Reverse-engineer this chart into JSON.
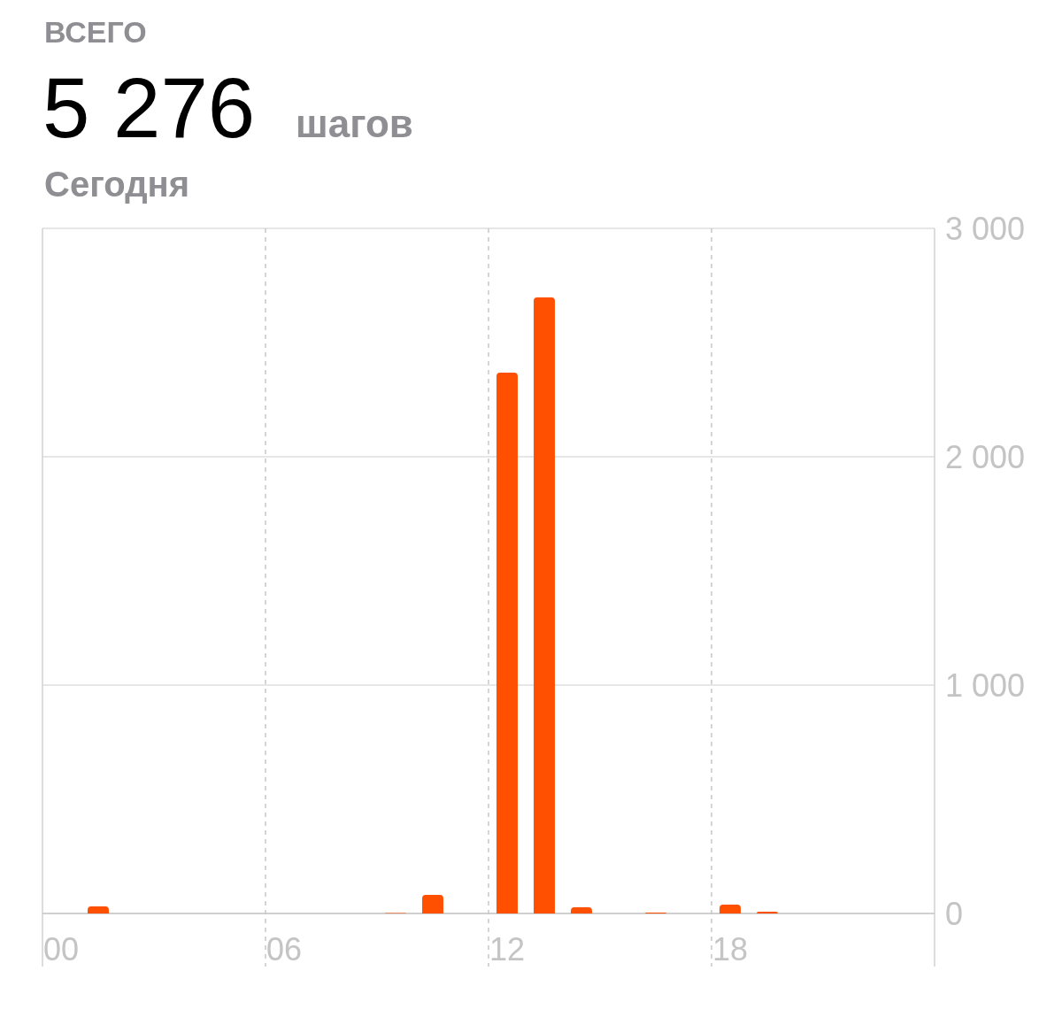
{
  "chart_data": {
    "type": "bar",
    "title": "5 276",
    "annotations": [
      "ВСЕГО",
      "шагов",
      "Сегодня"
    ],
    "categories": [
      "00",
      null,
      null,
      null,
      null,
      null,
      "06",
      null,
      null,
      null,
      null,
      null,
      "12",
      null,
      null,
      null,
      null,
      null,
      "18",
      null,
      null,
      null,
      null,
      null
    ],
    "values": [
      0,
      31,
      0,
      0,
      0,
      0,
      0,
      0,
      0,
      2,
      81,
      0,
      2368,
      2698,
      27,
      0,
      4,
      0,
      39,
      8,
      0,
      0,
      0,
      0
    ],
    "color": "#ff4f00",
    "ylim": [
      0,
      3000
    ],
    "yticks": [
      {
        "value": 0,
        "label": "0"
      },
      {
        "value": 1000,
        "label": "1 000"
      },
      {
        "value": 2000,
        "label": "2 000"
      },
      {
        "value": 3000,
        "label": "3 000"
      }
    ],
    "grid": true
  }
}
